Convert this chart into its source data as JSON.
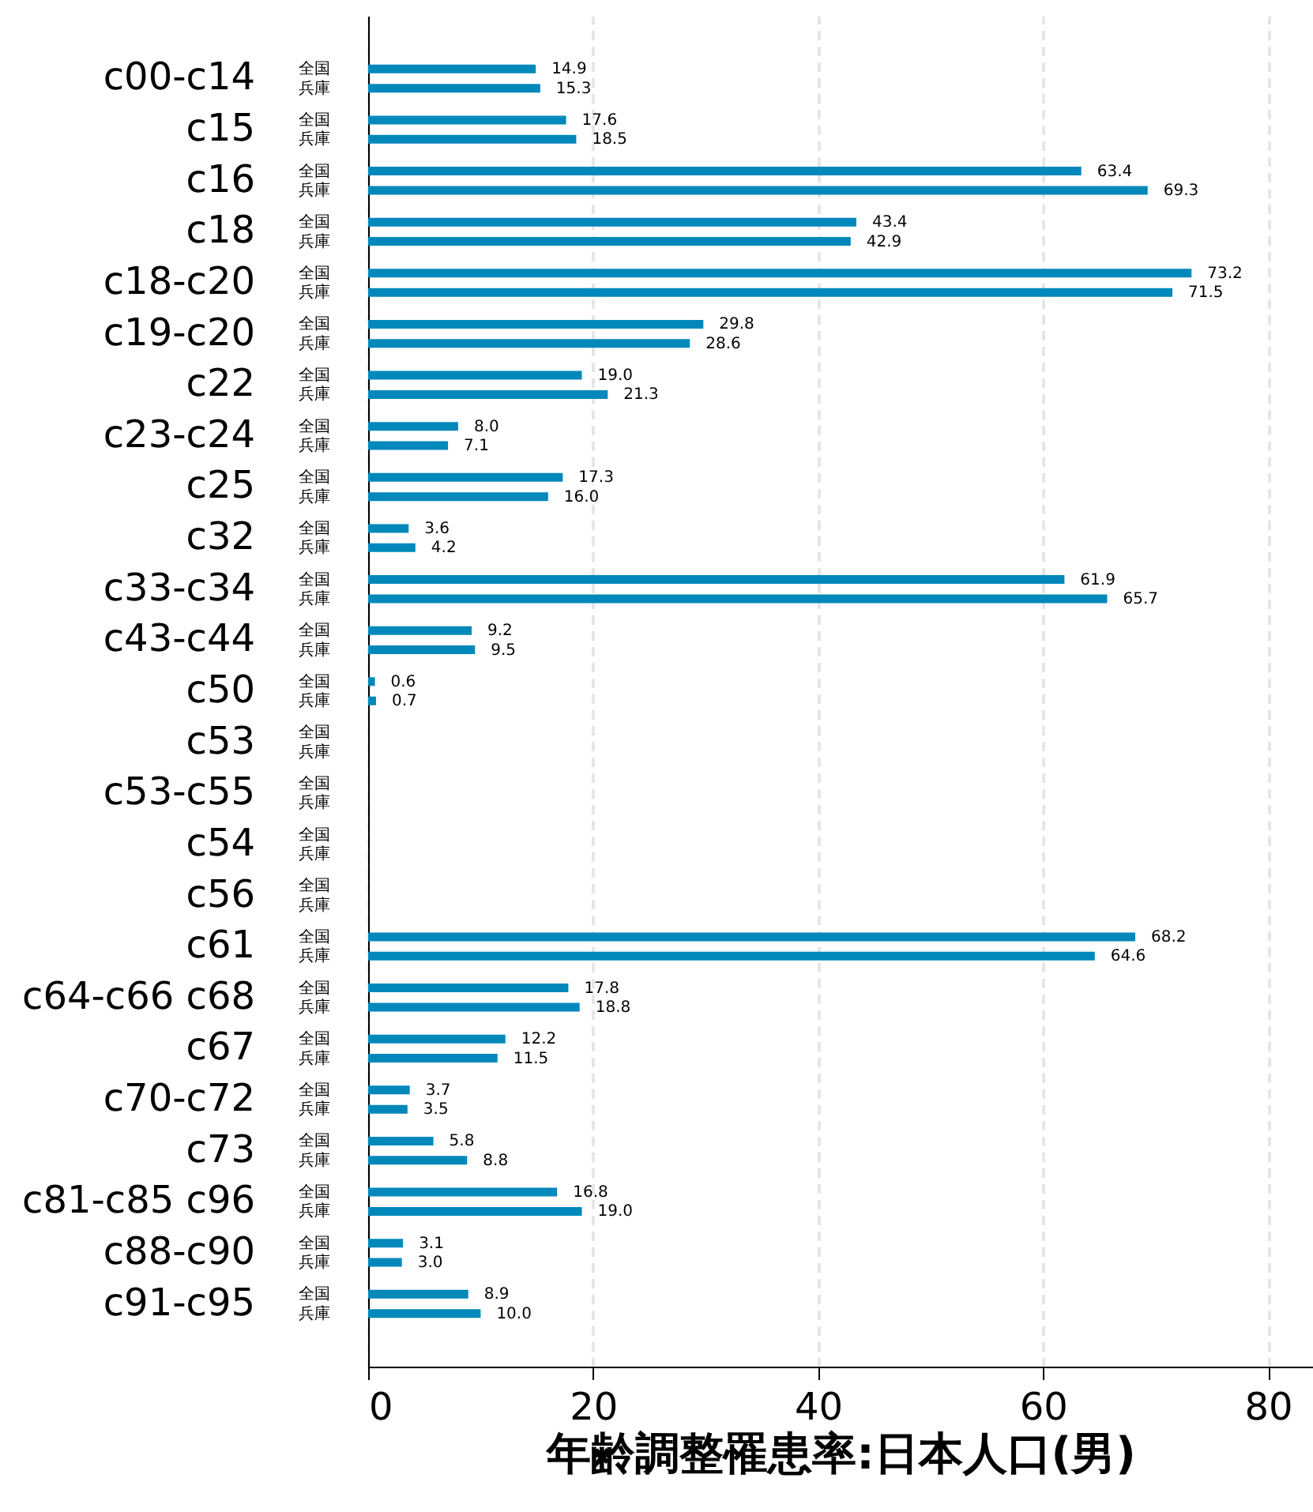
{
  "chart_data": {
    "type": "bar",
    "orientation": "horizontal",
    "xlabel": "年齢調整罹患率:日本人口(男)",
    "categories": [
      "c00-c14",
      "c15",
      "c16",
      "c18",
      "c18-c20",
      "c19-c20",
      "c22",
      "c23-c24",
      "c25",
      "c32",
      "c33-c34",
      "c43-c44",
      "c50",
      "c53",
      "c53-c55",
      "c54",
      "c56",
      "c61",
      "c64-c66 c68",
      "c67",
      "c70-c72",
      "c73",
      "c81-c85 c96",
      "c88-c90",
      "c91-c95"
    ],
    "series": [
      {
        "name": "全国",
        "color": "#0088bb",
        "values": [
          14.9,
          17.6,
          63.4,
          43.4,
          73.2,
          29.8,
          19.0,
          8.0,
          17.3,
          3.6,
          61.9,
          9.2,
          0.6,
          null,
          null,
          null,
          null,
          68.2,
          17.8,
          12.2,
          3.7,
          5.8,
          16.8,
          3.1,
          8.9
        ],
        "value_labels": [
          "14.9",
          "17.6",
          "63.4",
          "43.4",
          "73.2",
          "29.8",
          "19.0",
          "8.0",
          "17.3",
          "3.6",
          "61.9",
          "9.2",
          "0.6",
          null,
          null,
          null,
          null,
          "68.2",
          "17.8",
          "12.2",
          "3.7",
          "5.8",
          "16.8",
          "3.1",
          "8.9"
        ]
      },
      {
        "name": "兵庫",
        "color": "#0088bb",
        "values": [
          15.3,
          18.5,
          69.3,
          42.9,
          71.5,
          28.6,
          21.3,
          7.1,
          16.0,
          4.2,
          65.7,
          9.5,
          0.7,
          null,
          null,
          null,
          null,
          64.6,
          18.8,
          11.5,
          3.5,
          8.8,
          19.0,
          3.0,
          10.0
        ],
        "value_labels": [
          "15.3",
          "18.5",
          "69.3",
          "42.9",
          "71.5",
          "28.6",
          "21.3",
          "7.1",
          "16.0",
          "4.2",
          "65.7",
          "9.5",
          "0.7",
          null,
          null,
          null,
          null,
          "64.6",
          "18.8",
          "11.5",
          "3.5",
          "8.8",
          "19.0",
          "3.0",
          "10.0"
        ]
      }
    ],
    "xlim": [
      0,
      84
    ],
    "xticks": [
      0,
      20,
      40,
      60,
      80
    ],
    "grid": "x",
    "line_style": "dashed"
  }
}
